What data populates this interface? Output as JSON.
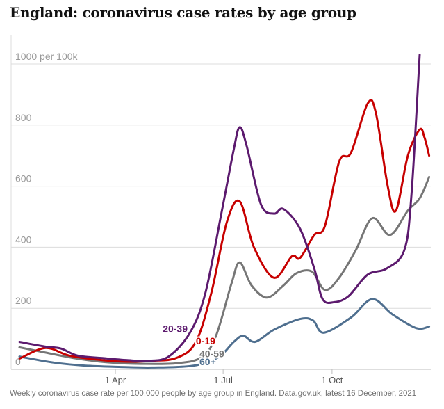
{
  "title": "England: coronavirus case rates by age group",
  "caption": "Weekly coronavirus case rate per 100,000 people by age group in England. Data.gov.uk, latest 16 December, 2021",
  "chart_data": {
    "type": "line",
    "title": "England: coronavirus case rates by age group",
    "xlabel": "",
    "ylabel": "",
    "ylim": [
      0,
      1050
    ],
    "xlim": [
      "2021-01-10",
      "2021-12-14"
    ],
    "grid": true,
    "y_ticks": [
      {
        "value": 0,
        "label": "0"
      },
      {
        "value": 200,
        "label": "200"
      },
      {
        "value": 400,
        "label": "400"
      },
      {
        "value": 600,
        "label": "600"
      },
      {
        "value": 800,
        "label": "800"
      },
      {
        "value": 1000,
        "label": "1000 per 100k"
      }
    ],
    "x_ticks": [
      {
        "value": "2021-04-01",
        "label": "1 Apr"
      },
      {
        "value": "2021-07-01",
        "label": "1 Jul"
      },
      {
        "value": "2021-10-01",
        "label": "1 Oct"
      }
    ],
    "series": [
      {
        "name": "20-39",
        "color": "#5c1a6e",
        "label_anchor": {
          "x": "2021-05-11",
          "y": 122
        },
        "points": [
          {
            "x": "2021-01-10",
            "y": 90
          },
          {
            "x": "2021-01-31",
            "y": 75
          },
          {
            "x": "2021-02-14",
            "y": 68
          },
          {
            "x": "2021-02-28",
            "y": 45
          },
          {
            "x": "2021-03-21",
            "y": 37
          },
          {
            "x": "2021-04-11",
            "y": 30
          },
          {
            "x": "2021-04-29",
            "y": 28
          },
          {
            "x": "2021-05-16",
            "y": 42
          },
          {
            "x": "2021-06-03",
            "y": 120
          },
          {
            "x": "2021-06-16",
            "y": 250
          },
          {
            "x": "2021-06-30",
            "y": 520
          },
          {
            "x": "2021-07-10",
            "y": 720
          },
          {
            "x": "2021-07-15",
            "y": 793
          },
          {
            "x": "2021-07-21",
            "y": 730
          },
          {
            "x": "2021-08-02",
            "y": 540
          },
          {
            "x": "2021-08-13",
            "y": 510
          },
          {
            "x": "2021-08-21",
            "y": 525
          },
          {
            "x": "2021-09-04",
            "y": 460
          },
          {
            "x": "2021-09-16",
            "y": 330
          },
          {
            "x": "2021-09-23",
            "y": 230
          },
          {
            "x": "2021-10-03",
            "y": 220
          },
          {
            "x": "2021-10-15",
            "y": 240
          },
          {
            "x": "2021-10-31",
            "y": 310
          },
          {
            "x": "2021-11-16",
            "y": 330
          },
          {
            "x": "2021-12-01",
            "y": 390
          },
          {
            "x": "2021-12-07",
            "y": 570
          },
          {
            "x": "2021-12-14",
            "y": 1030
          }
        ]
      },
      {
        "name": "0-19",
        "color": "#c70000",
        "label_anchor": {
          "x": "2021-06-08",
          "y": 82
        },
        "points": [
          {
            "x": "2021-01-10",
            "y": 35
          },
          {
            "x": "2021-02-01",
            "y": 70
          },
          {
            "x": "2021-02-21",
            "y": 45
          },
          {
            "x": "2021-03-21",
            "y": 30
          },
          {
            "x": "2021-04-11",
            "y": 25
          },
          {
            "x": "2021-05-02",
            "y": 28
          },
          {
            "x": "2021-05-23",
            "y": 38
          },
          {
            "x": "2021-06-08",
            "y": 90
          },
          {
            "x": "2021-06-21",
            "y": 250
          },
          {
            "x": "2021-07-04",
            "y": 480
          },
          {
            "x": "2021-07-15",
            "y": 550
          },
          {
            "x": "2021-07-27",
            "y": 400
          },
          {
            "x": "2021-08-13",
            "y": 300
          },
          {
            "x": "2021-08-28",
            "y": 370
          },
          {
            "x": "2021-09-04",
            "y": 365
          },
          {
            "x": "2021-09-16",
            "y": 440
          },
          {
            "x": "2021-09-25",
            "y": 470
          },
          {
            "x": "2021-10-07",
            "y": 680
          },
          {
            "x": "2021-10-17",
            "y": 710
          },
          {
            "x": "2021-10-31",
            "y": 870
          },
          {
            "x": "2021-11-07",
            "y": 840
          },
          {
            "x": "2021-11-17",
            "y": 600
          },
          {
            "x": "2021-11-24",
            "y": 520
          },
          {
            "x": "2021-12-04",
            "y": 700
          },
          {
            "x": "2021-12-14",
            "y": 785
          },
          {
            "x": "2021-12-18",
            "y": 760
          },
          {
            "x": "2021-12-22",
            "y": 700
          }
        ]
      },
      {
        "name": "40-59",
        "color": "#767676",
        "label_anchor": {
          "x": "2021-06-11",
          "y": 40
        },
        "points": [
          {
            "x": "2021-01-10",
            "y": 72
          },
          {
            "x": "2021-02-01",
            "y": 55
          },
          {
            "x": "2021-02-28",
            "y": 35
          },
          {
            "x": "2021-03-28",
            "y": 22
          },
          {
            "x": "2021-04-22",
            "y": 18
          },
          {
            "x": "2021-05-23",
            "y": 20
          },
          {
            "x": "2021-06-13",
            "y": 40
          },
          {
            "x": "2021-06-25",
            "y": 110
          },
          {
            "x": "2021-07-08",
            "y": 280
          },
          {
            "x": "2021-07-15",
            "y": 350
          },
          {
            "x": "2021-07-25",
            "y": 275
          },
          {
            "x": "2021-08-07",
            "y": 235
          },
          {
            "x": "2021-08-21",
            "y": 275
          },
          {
            "x": "2021-09-01",
            "y": 315
          },
          {
            "x": "2021-09-14",
            "y": 320
          },
          {
            "x": "2021-09-25",
            "y": 260
          },
          {
            "x": "2021-10-07",
            "y": 300
          },
          {
            "x": "2021-10-21",
            "y": 390
          },
          {
            "x": "2021-11-04",
            "y": 495
          },
          {
            "x": "2021-11-19",
            "y": 440
          },
          {
            "x": "2021-12-04",
            "y": 520
          },
          {
            "x": "2021-12-14",
            "y": 560
          },
          {
            "x": "2021-12-22",
            "y": 630
          }
        ]
      },
      {
        "name": "60+",
        "color": "#4f6f8f",
        "label_anchor": {
          "x": "2021-06-11",
          "y": 14
        },
        "points": [
          {
            "x": "2021-01-10",
            "y": 42
          },
          {
            "x": "2021-02-08",
            "y": 22
          },
          {
            "x": "2021-03-07",
            "y": 12
          },
          {
            "x": "2021-04-04",
            "y": 8
          },
          {
            "x": "2021-05-02",
            "y": 6
          },
          {
            "x": "2021-06-06",
            "y": 12
          },
          {
            "x": "2021-06-27",
            "y": 40
          },
          {
            "x": "2021-07-10",
            "y": 90
          },
          {
            "x": "2021-07-18",
            "y": 110
          },
          {
            "x": "2021-07-28",
            "y": 90
          },
          {
            "x": "2021-08-13",
            "y": 130
          },
          {
            "x": "2021-09-04",
            "y": 165
          },
          {
            "x": "2021-09-15",
            "y": 160
          },
          {
            "x": "2021-09-24",
            "y": 120
          },
          {
            "x": "2021-10-17",
            "y": 170
          },
          {
            "x": "2021-11-04",
            "y": 230
          },
          {
            "x": "2021-11-21",
            "y": 180
          },
          {
            "x": "2021-12-11",
            "y": 135
          },
          {
            "x": "2021-12-22",
            "y": 140
          }
        ]
      }
    ]
  }
}
